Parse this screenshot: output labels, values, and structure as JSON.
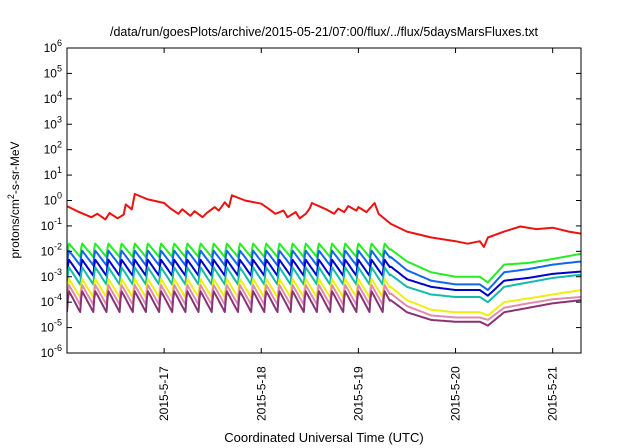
{
  "chart_data": {
    "type": "line",
    "title": "/data/run/goesPlots/archive/2015-05-21/07:00/flux/../flux/5daysMarsFluxes.txt",
    "xlabel": "Coordinated Universal Time (UTC)",
    "ylabel": {
      "base": "protons/cm",
      "sup": "2",
      "rest": "-s-sr-MeV"
    },
    "x_scale": "time (days)",
    "xlim": [
      "2015-05-16 00:00",
      "2015-05-21 07:00"
    ],
    "x_ticks": [
      {
        "t": "2015-05-17 00:00",
        "label": "2015-5-17"
      },
      {
        "t": "2015-05-18 00:00",
        "label": "2015-5-18"
      },
      {
        "t": "2015-05-19 00:00",
        "label": "2015-5-19"
      },
      {
        "t": "2015-05-20 00:00",
        "label": "2015-5-20"
      },
      {
        "t": "2015-05-21 00:00",
        "label": "2015-5-21"
      }
    ],
    "y_scale": "log",
    "ylim": [
      1e-06,
      1000000.0
    ],
    "y_ticks": [
      {
        "v": 1e-06,
        "base": "10",
        "exp": "-6"
      },
      {
        "v": 1e-05,
        "base": "10",
        "exp": "-5"
      },
      {
        "v": 0.0001,
        "base": "10",
        "exp": "-4"
      },
      {
        "v": 0.001,
        "base": "10",
        "exp": "-3"
      },
      {
        "v": 0.01,
        "base": "10",
        "exp": "-2"
      },
      {
        "v": 0.1,
        "base": "10",
        "exp": "-1"
      },
      {
        "v": 1,
        "base": "10",
        "exp": "0"
      },
      {
        "v": 10.0,
        "base": "10",
        "exp": "1"
      },
      {
        "v": 100.0,
        "base": "10",
        "exp": "2"
      },
      {
        "v": 1000.0,
        "base": "10",
        "exp": "3"
      },
      {
        "v": 10000.0,
        "base": "10",
        "exp": "4"
      },
      {
        "v": 100000.0,
        "base": "10",
        "exp": "5"
      },
      {
        "v": 1000000.0,
        "base": "10",
        "exp": "6"
      }
    ],
    "grid": false,
    "legend": "none",
    "series": [
      {
        "color": "#ee1111",
        "x": [
          "2015-05-16 00:00",
          "2015-05-16 03:00",
          "2015-05-16 06:00",
          "2015-05-16 07:30",
          "2015-05-16 09:30",
          "2015-05-16 10:30",
          "2015-05-16 12:30",
          "2015-05-16 14:00",
          "2015-05-16 14:30",
          "2015-05-16 16:00",
          "2015-05-16 16:45",
          "2015-05-16 20:00",
          "2015-05-17 00:00",
          "2015-05-17 01:30",
          "2015-05-17 03:30",
          "2015-05-17 04:30",
          "2015-05-17 06:30",
          "2015-05-17 07:30",
          "2015-05-17 09:30",
          "2015-05-17 10:30",
          "2015-05-17 12:30",
          "2015-05-17 13:30",
          "2015-05-17 15:00",
          "2015-05-17 16:00",
          "2015-05-17 16:45",
          "2015-05-17 20:00",
          "2015-05-18 00:00",
          "2015-05-18 02:00",
          "2015-05-18 03:30",
          "2015-05-18 05:30",
          "2015-05-18 06:30",
          "2015-05-18 08:30",
          "2015-05-18 09:30",
          "2015-05-18 11:00",
          "2015-05-18 12:00",
          "2015-05-18 12:30",
          "2015-05-18 16:00",
          "2015-05-18 18:00",
          "2015-05-18 19:00",
          "2015-05-18 20:30",
          "2015-05-18 21:30",
          "2015-05-18 23:30",
          "2015-05-19 00:00",
          "2015-05-19 02:00",
          "2015-05-19 04:00",
          "2015-05-19 05:00",
          "2015-05-19 08:00",
          "2015-05-19 12:00",
          "2015-05-19 18:00",
          "2015-05-20 00:00",
          "2015-05-20 03:00",
          "2015-05-20 06:00",
          "2015-05-20 07:00",
          "2015-05-20 08:00",
          "2015-05-20 12:00",
          "2015-05-20 16:00",
          "2015-05-20 20:00",
          "2015-05-21 00:00",
          "2015-05-21 04:00",
          "2015-05-21 07:00"
        ],
        "y": [
          0.6,
          0.35,
          0.22,
          0.3,
          0.18,
          0.32,
          0.2,
          0.28,
          0.7,
          0.45,
          1.8,
          1.1,
          0.8,
          0.5,
          0.3,
          0.45,
          0.25,
          0.38,
          0.22,
          0.32,
          0.55,
          0.4,
          0.85,
          0.55,
          1.6,
          1.0,
          0.75,
          0.45,
          0.3,
          0.4,
          0.22,
          0.35,
          0.2,
          0.3,
          0.5,
          0.8,
          0.45,
          0.3,
          0.48,
          0.35,
          0.6,
          0.4,
          0.55,
          0.35,
          0.8,
          0.3,
          0.12,
          0.06,
          0.035,
          0.025,
          0.02,
          0.025,
          0.015,
          0.035,
          0.06,
          0.095,
          0.075,
          0.085,
          0.06,
          0.05
        ]
      },
      {
        "color": "#22ee22",
        "env_amp": 0.55,
        "x": [
          "2015-05-16 00:00",
          "2015-05-19 08:00",
          "2015-05-19 12:00",
          "2015-05-19 18:00",
          "2015-05-20 00:00",
          "2015-05-20 06:00",
          "2015-05-20 08:00",
          "2015-05-20 12:00",
          "2015-05-20 18:00",
          "2015-05-21 00:00",
          "2015-05-21 07:00"
        ],
        "y": [
          0.012,
          0.012,
          0.004,
          0.0015,
          0.001,
          0.001,
          0.0006,
          0.003,
          0.0035,
          0.005,
          0.008
        ]
      },
      {
        "color": "#1166ee",
        "env_amp": 0.6,
        "x": [
          "2015-05-16 00:00",
          "2015-05-19 08:00",
          "2015-05-19 12:00",
          "2015-05-19 18:00",
          "2015-05-20 00:00",
          "2015-05-20 06:00",
          "2015-05-20 08:00",
          "2015-05-20 12:00",
          "2015-05-20 18:00",
          "2015-05-21 00:00",
          "2015-05-21 07:00"
        ],
        "y": [
          0.006,
          0.006,
          0.0018,
          0.0007,
          0.0005,
          0.0005,
          0.0003,
          0.0015,
          0.002,
          0.003,
          0.004
        ]
      },
      {
        "color": "#0000cc",
        "env_amp": 0.65,
        "x": [
          "2015-05-16 00:00",
          "2015-05-19 08:00",
          "2015-05-19 12:00",
          "2015-05-19 18:00",
          "2015-05-20 00:00",
          "2015-05-20 06:00",
          "2015-05-20 08:00",
          "2015-05-20 12:00",
          "2015-05-20 18:00",
          "2015-05-21 00:00",
          "2015-05-21 07:00"
        ],
        "y": [
          0.0025,
          0.0025,
          0.0008,
          0.0004,
          0.0003,
          0.0003,
          0.00018,
          0.0007,
          0.0009,
          0.0013,
          0.0016
        ]
      },
      {
        "color": "#11bbaa",
        "env_amp": 0.7,
        "x": [
          "2015-05-16 00:00",
          "2015-05-19 08:00",
          "2015-05-19 12:00",
          "2015-05-19 18:00",
          "2015-05-20 00:00",
          "2015-05-20 06:00",
          "2015-05-20 08:00",
          "2015-05-20 12:00",
          "2015-05-20 18:00",
          "2015-05-21 00:00",
          "2015-05-21 07:00"
        ],
        "y": [
          0.0012,
          0.0012,
          0.0004,
          0.0002,
          0.00016,
          0.00016,
          0.0001,
          0.0004,
          0.0006,
          0.0009,
          0.0012
        ]
      },
      {
        "color": "#eeee11",
        "env_amp": 0.75,
        "x": [
          "2015-05-16 00:00",
          "2015-05-19 08:00",
          "2015-05-19 12:00",
          "2015-05-19 18:00",
          "2015-05-20 00:00",
          "2015-05-20 06:00",
          "2015-05-20 08:00",
          "2015-05-20 12:00",
          "2015-05-20 18:00",
          "2015-05-21 00:00",
          "2015-05-21 07:00"
        ],
        "y": [
          0.0004,
          0.0004,
          0.00012,
          5e-05,
          4e-05,
          4e-05,
          3e-05,
          0.0001,
          0.00014,
          0.0002,
          0.0003
        ]
      },
      {
        "color": "#e08ab0",
        "env_amp": 0.8,
        "x": [
          "2015-05-16 00:00",
          "2015-05-19 08:00",
          "2015-05-19 12:00",
          "2015-05-19 18:00",
          "2015-05-20 00:00",
          "2015-05-20 06:00",
          "2015-05-20 08:00",
          "2015-05-20 12:00",
          "2015-05-20 18:00",
          "2015-05-21 00:00",
          "2015-05-21 07:00"
        ],
        "y": [
          0.00022,
          0.00022,
          7e-05,
          3e-05,
          2.5e-05,
          2.5e-05,
          2e-05,
          6e-05,
          9e-05,
          0.00013,
          0.00016
        ]
      },
      {
        "color": "#883377",
        "env_amp": 0.85,
        "x": [
          "2015-05-16 00:00",
          "2015-05-19 08:00",
          "2015-05-19 12:00",
          "2015-05-19 18:00",
          "2015-05-20 00:00",
          "2015-05-20 06:00",
          "2015-05-20 08:00",
          "2015-05-20 12:00",
          "2015-05-20 18:00",
          "2015-05-21 00:00",
          "2015-05-21 07:00"
        ],
        "y": [
          0.00012,
          0.00012,
          4e-05,
          2e-05,
          1.7e-05,
          1.7e-05,
          1.2e-05,
          4e-05,
          6e-05,
          9e-05,
          0.00012
        ]
      }
    ],
    "oscillation_period_hours": 3.25,
    "oscillation_end": "2015-05-19 08:00"
  }
}
